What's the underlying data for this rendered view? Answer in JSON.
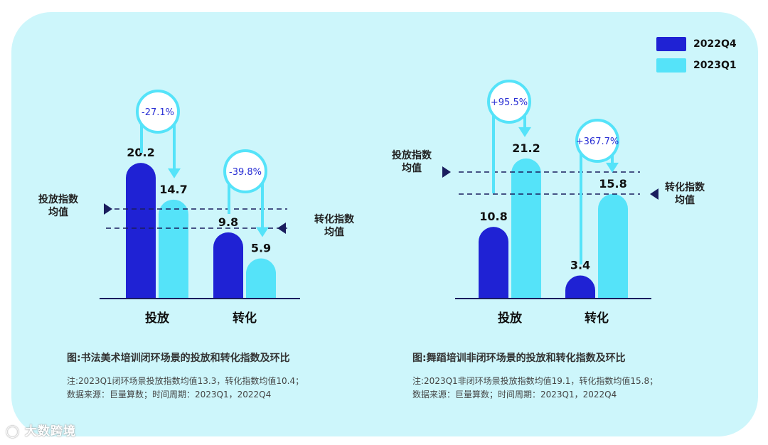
{
  "legend": [
    {
      "label": "2022Q4",
      "color": "#1f22d4"
    },
    {
      "label": "2023Q1",
      "color": "#55e3f9"
    }
  ],
  "colors": {
    "dark": "#1f22d4",
    "light": "#55e3f9",
    "axis": "#1a1d5e",
    "badge_text": "#2a2fd4",
    "badge_ring": "#55e3f9"
  },
  "chart_data": [
    {
      "type": "bar",
      "categories": [
        "投放",
        "转化"
      ],
      "series": [
        {
          "name": "2022Q4",
          "values": [
            20.2,
            9.8
          ]
        },
        {
          "name": "2023Q1",
          "values": [
            14.7,
            5.9
          ]
        }
      ],
      "value_labels": [
        [
          "20.2",
          "9.8"
        ],
        [
          "14.7",
          "5.9"
        ]
      ],
      "changes": [
        "-27.1%",
        "-39.8%"
      ],
      "reference_lines": [
        {
          "label_line1": "投放指数",
          "label_line2": "均值",
          "value": 13.3
        },
        {
          "label_line1": "转化指数",
          "label_line2": "均值",
          "value": 10.4
        }
      ],
      "caption": "图:书法美术培训闭环场景的投放和转化指数及环比",
      "note_line1": "注:2023Q1闭环场景投放指数均值13.3，转化指数均值10.4；",
      "note_line2": "数据来源：巨量算数；时间周期：2023Q1，2022Q4"
    },
    {
      "type": "bar",
      "categories": [
        "投放",
        "转化"
      ],
      "series": [
        {
          "name": "2022Q4",
          "values": [
            10.8,
            3.4
          ]
        },
        {
          "name": "2023Q1",
          "values": [
            21.2,
            15.8
          ]
        }
      ],
      "value_labels": [
        [
          "10.8",
          "3.4"
        ],
        [
          "21.2",
          "15.8"
        ]
      ],
      "changes": [
        "+95.5%",
        "+367.7%"
      ],
      "reference_lines": [
        {
          "label_line1": "投放指数",
          "label_line2": "均值",
          "value": 19.1
        },
        {
          "label_line1": "转化指数",
          "label_line2": "均值",
          "value": 15.8
        }
      ],
      "caption": "图:舞蹈培训非闭环场景的投放和转化指数及环比",
      "note_line1": "注:2023Q1非闭环场景投放指数均值19.1，转化指数均值15.8；",
      "note_line2": "数据来源：巨量算数；时间周期：2023Q1，2022Q4"
    }
  ],
  "watermark": "大数跨境"
}
